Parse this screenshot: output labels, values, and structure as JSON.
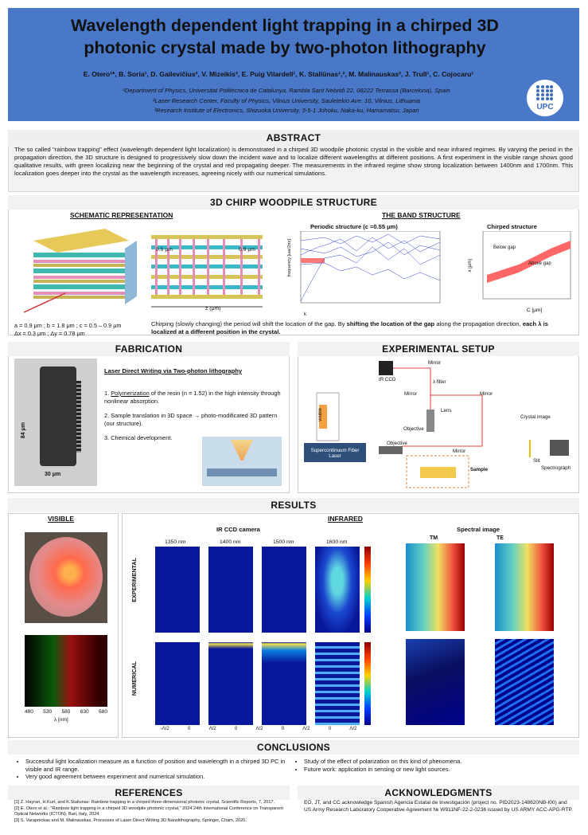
{
  "header": {
    "title_line1": "Wavelength dependent light trapping in a chirped 3D",
    "title_line2": "photonic crystal made by two-photon lithography",
    "authors": "E. Otero¹*, B. Soria¹, D. Gailevičius², V. Mizeikis³, E. Puig Vilardell¹, K. Staliūnas¹,², M. Malinauskas², J. Trull¹, C. Cojocaru¹",
    "aff1": "¹Department of Physics, Universitat Politècnica de Catalunya, Rambla Sant Nebridi 22, 08222 Terrassa (Barcelona), Spain",
    "aff2": "²Laser Research Center, Faculty of Physics, Vilnius University, Sauletekio Ave. 10, Vilnius, Lithuania",
    "aff3": "³Research Institute of Electronics, Shizuoka University, 3-5-1 Johoku, Naka-ku, Hamamatsu, Japan",
    "logo": "UPC"
  },
  "abstract": {
    "title": "ABSTRACT",
    "text": "The so called \"rainbow trapping\" effect (wavelength dependent light localization) is demonstrated in a chirped 3D woodpile photonic crystal in the visible and near infrared regimes. By varying the period in the propagation direction, the 3D structure is designed to progressively slow down the incident wave and to localize different wavelengths at different positions. A first experiment in the visible range shows good qualitative results, with green localizing near the beginning of the crystal and red propagating deeper. The measurements in the infrared regime show strong localization between 1400nm and 1700nm. This localization goes deeper into the crystal as the wavelength increases, agreeing nicely with our numerical simulations."
  },
  "structure": {
    "title": "3D CHIRP WOODPILE STRUCTURE",
    "schematic_title": "SCHEMATIC REPRESENTATION",
    "band_title": "THE BAND STRUCTURE",
    "params1": "a = 0.9 μm ; b = 1.8 μm ; c = 0.5 – 0.9 μm",
    "params2": "Δx = 0.3 μm ; Δy = 0.78 μm",
    "period_left": "0.5 μm",
    "period_right": "0.9 μm",
    "z_axis": "z (μm)",
    "periodic_title": "Periodic structure (c =0.55 μm)",
    "chirped_title": "Chirped structure",
    "below_gap": "Below gap",
    "above_gap": "Above gap",
    "c_axis": "C [μm]",
    "lambda_axis": "λ [μm]",
    "freq_axis": "frequency [ωa/2πc]",
    "k_axis": "k",
    "caption_a": "Chirping (slowly changing) the period will shift the location of the gap. By ",
    "caption_b": "shifting the location of the gap",
    "caption_c": " along the propagation direction, ",
    "caption_d": "each λ is localized at a different position in the crystal."
  },
  "fabrication": {
    "title": "FABRICATION",
    "heading": "Laser Direct Writing via Two-photon lithography",
    "step1_u": "Polymerization",
    "step1": " of the resin (n = 1.52) in the high intensity through nonlinear absorption.",
    "step2": "Sample translation in 3D space → photo-modificated 3D pattern (our structure).",
    "step3": "Chemical development.",
    "dim_h": "84 μm",
    "dim_w": "30 μm"
  },
  "setup": {
    "title": "EXPERIMENTAL SETUP",
    "ir_ccd": "IR CCD",
    "mirror": "Mirror",
    "filter": "λ filter",
    "lens": "Lens",
    "objective": "Objective",
    "crystal_image": "Crystal image",
    "laser": "Supercontinuum Fiber Laser",
    "sample": "Sample",
    "slit": "Slit",
    "spectrograph": "Spectrograph",
    "visible": "visible"
  },
  "results": {
    "title": "RESULTS",
    "visible_title": "VISIBLE",
    "infrared_title": "INFRARED",
    "ir_ccd_title": "IR CCD camera",
    "spectral_title": "Spectral image",
    "wavelengths": [
      "1350 nm",
      "1400 nm",
      "1500 nm",
      "1600 nm"
    ],
    "experimental": "EXPERIMENTAL",
    "numerical": "NUMERICAL",
    "tm": "TM",
    "te": "TE",
    "vis_ticks": [
      "480",
      "530",
      "580",
      "630",
      "680"
    ],
    "vis_axis": "λ [nm]",
    "xtick_l": "-Λ/2",
    "xtick_c": "0",
    "xtick_r": "Λ/2"
  },
  "conclusions": {
    "title": "CONCLUSIONS",
    "left": [
      "Successful light localization measure as a function of position and wavelength in a chirped 3D PC in visible and IR range.",
      "Very good agreement between experiment and numerical simulation."
    ],
    "right": [
      "Study of the effect of polarization on this kind of phenomena.",
      "Future work: application in sensing or new light sources."
    ]
  },
  "references": {
    "title": "REFERENCES",
    "items": [
      "[1] Z. Hayran, H.Kurt, and K.Staliunas: Rainbow trapping in a chirped three-dimensional photonic crystal, Scientific Reports, 7, 2017.",
      "[2] E. Otero et al.: \"Rainbow light trapping in a chirped 3D woodpile photonic crystal,\" 2024 24th International Conference on Transparent Optical Networks (ICTON), Bari, Italy, 2024",
      "[3] S. Varapnickas and M. Malinauskas, Processes of Laser Direct Writing 3D Nanolithography, Springer, Cham, 2020."
    ]
  },
  "acknowledgments": {
    "title": "ACKNOWLEDGMENTS",
    "text": "EO, JT, and CC acknowledge Spanish Agencia Estatal de Investigación (project no. PID2023-148620NB-I00) and US Army Research Laboratory Cooperative Agreement № W911NF-22-2-0236 issued by US ARMY ACC-APG-RTP."
  },
  "colors": {
    "header": "#4a78c8",
    "accent": "#ff6666"
  }
}
